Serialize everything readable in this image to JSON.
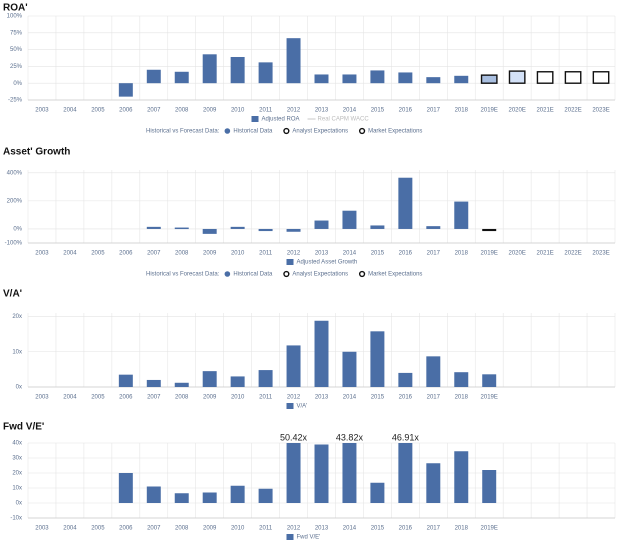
{
  "chart_data": [
    {
      "type": "bar",
      "title": "ROA'",
      "categories": [
        "2003",
        "2004",
        "2005",
        "2006",
        "2007",
        "2008",
        "2009",
        "2010",
        "2011",
        "2012",
        "2013",
        "2014",
        "2015",
        "2016",
        "2017",
        "2018",
        "2019E",
        "2020E",
        "2021E",
        "2022E",
        "2023E"
      ],
      "series": [
        {
          "name": "Adjusted ROA",
          "color": "#4a6ea6",
          "values": [
            null,
            null,
            null,
            -20,
            20,
            17,
            43,
            39,
            31,
            67,
            13,
            13,
            19,
            16,
            9,
            11,
            12,
            18,
            17,
            17,
            17
          ],
          "colors": [
            "#4a6ea6",
            "#4a6ea6",
            "#4a6ea6",
            "#4a6ea6",
            "#4a6ea6",
            "#4a6ea6",
            "#4a6ea6",
            "#4a6ea6",
            "#4a6ea6",
            "#4a6ea6",
            "#4a6ea6",
            "#4a6ea6",
            "#4a6ea6",
            "#4a6ea6",
            "#4a6ea6",
            "#4a6ea6",
            "#a9bfe0",
            "#d3e1f7",
            "#ffffff",
            "#ffffff",
            "#ffffff"
          ],
          "edge_colors": [
            "#4a6ea6",
            "#4a6ea6",
            "#4a6ea6",
            "#4a6ea6",
            "#4a6ea6",
            "#4a6ea6",
            "#4a6ea6",
            "#4a6ea6",
            "#4a6ea6",
            "#4a6ea6",
            "#4a6ea6",
            "#4a6ea6",
            "#4a6ea6",
            "#4a6ea6",
            "#4a6ea6",
            "#4a6ea6",
            "#111111",
            "#111111",
            "#111111",
            "#111111",
            "#111111"
          ]
        }
      ],
      "extra_legend": [
        {
          "name": "Real CAPM WACC",
          "color": "#c8c8c8"
        }
      ],
      "forecast_legend": {
        "title": "Historical vs Forecast Data:",
        "items": [
          "Historical Data",
          "Analyst Expectations",
          "Market Expectations"
        ]
      },
      "ylim": [
        -25,
        100
      ],
      "yticks": [
        {
          "value": -25,
          "label": "-25%"
        },
        {
          "value": 0,
          "label": "0%"
        },
        {
          "value": 25,
          "label": "25%"
        },
        {
          "value": 50,
          "label": "50%"
        },
        {
          "value": 75,
          "label": "75%"
        },
        {
          "value": 100,
          "label": "100%"
        }
      ],
      "grid": true
    },
    {
      "type": "bar",
      "title": "Asset' Growth",
      "categories": [
        "2003",
        "2004",
        "2005",
        "2006",
        "2007",
        "2008",
        "2009",
        "2010",
        "2011",
        "2012",
        "2013",
        "2014",
        "2015",
        "2016",
        "2017",
        "2018",
        "2019E",
        "2020E",
        "2021E",
        "2022E",
        "2023E"
      ],
      "series": [
        {
          "name": "Adjusted Asset Growth",
          "color": "#4a6ea6",
          "values": [
            null,
            null,
            null,
            null,
            15,
            10,
            -35,
            15,
            -15,
            -20,
            60,
            130,
            25,
            365,
            20,
            195,
            -15,
            null,
            null,
            null,
            null
          ],
          "colors": [
            "#4a6ea6",
            "#4a6ea6",
            "#4a6ea6",
            "#4a6ea6",
            "#4a6ea6",
            "#4a6ea6",
            "#4a6ea6",
            "#4a6ea6",
            "#4a6ea6",
            "#4a6ea6",
            "#4a6ea6",
            "#4a6ea6",
            "#4a6ea6",
            "#4a6ea6",
            "#4a6ea6",
            "#4a6ea6",
            "#111111",
            "#111111",
            "#111111",
            "#111111",
            "#111111"
          ],
          "edge_colors": [
            "#4a6ea6",
            "#4a6ea6",
            "#4a6ea6",
            "#4a6ea6",
            "#4a6ea6",
            "#4a6ea6",
            "#4a6ea6",
            "#4a6ea6",
            "#4a6ea6",
            "#4a6ea6",
            "#4a6ea6",
            "#4a6ea6",
            "#4a6ea6",
            "#4a6ea6",
            "#4a6ea6",
            "#4a6ea6",
            "#111111",
            "#111111",
            "#111111",
            "#111111",
            "#111111"
          ]
        }
      ],
      "forecast_legend": {
        "title": "Historical vs Forecast Data:",
        "items": [
          "Historical Data",
          "Analyst Expectations",
          "Market Expectations"
        ]
      },
      "ylim": [
        -100,
        420
      ],
      "yticks": [
        {
          "value": -100,
          "label": "-100%"
        },
        {
          "value": 0,
          "label": "0%"
        },
        {
          "value": 200,
          "label": "200%"
        },
        {
          "value": 400,
          "label": "400%"
        }
      ],
      "grid": true
    },
    {
      "type": "bar",
      "title": "V/A'",
      "categories": [
        "2003",
        "2004",
        "2005",
        "2006",
        "2007",
        "2008",
        "2009",
        "2010",
        "2011",
        "2012",
        "2013",
        "2014",
        "2015",
        "2016",
        "2017",
        "2018",
        "2019E",
        null,
        null,
        null,
        null
      ],
      "series": [
        {
          "name": "V/A'",
          "color": "#4a6ea6",
          "values": [
            null,
            null,
            null,
            3.5,
            2,
            1.2,
            4.5,
            3,
            4.8,
            11.8,
            18.8,
            10,
            15.8,
            4,
            8.7,
            4.2,
            3.6,
            null,
            null,
            null,
            null
          ]
        }
      ],
      "ylim": [
        0,
        21
      ],
      "yticks": [
        {
          "value": 0,
          "label": "0x"
        },
        {
          "value": 10,
          "label": "10x"
        },
        {
          "value": 20,
          "label": "20x"
        }
      ],
      "grid": true
    },
    {
      "type": "bar",
      "title": "Fwd V/E'",
      "categories": [
        "2003",
        "2004",
        "2005",
        "2006",
        "2007",
        "2008",
        "2009",
        "2010",
        "2011",
        "2012",
        "2013",
        "2014",
        "2015",
        "2016",
        "2017",
        "2018",
        "2019E",
        null,
        null,
        null,
        null
      ],
      "series": [
        {
          "name": "Fwd V/E'",
          "color": "#4a6ea6",
          "values": [
            null,
            null,
            null,
            20,
            11,
            6.5,
            7,
            11.5,
            9.5,
            50.42,
            39,
            43.82,
            13.5,
            46.91,
            26.5,
            34.5,
            22,
            null,
            null,
            null,
            null
          ],
          "value_labels": [
            null,
            null,
            null,
            null,
            null,
            null,
            null,
            null,
            null,
            "50.42x",
            null,
            "43.82x",
            null,
            "46.91x",
            null,
            null,
            null,
            null,
            null,
            null,
            null
          ]
        }
      ],
      "ylim": [
        -10,
        40
      ],
      "yticks": [
        {
          "value": -10,
          "label": "-10x"
        },
        {
          "value": 0,
          "label": "0x"
        },
        {
          "value": 10,
          "label": "10x"
        },
        {
          "value": 20,
          "label": "20x"
        },
        {
          "value": 30,
          "label": "30x"
        },
        {
          "value": 40,
          "label": "40x"
        }
      ],
      "grid": true
    }
  ]
}
